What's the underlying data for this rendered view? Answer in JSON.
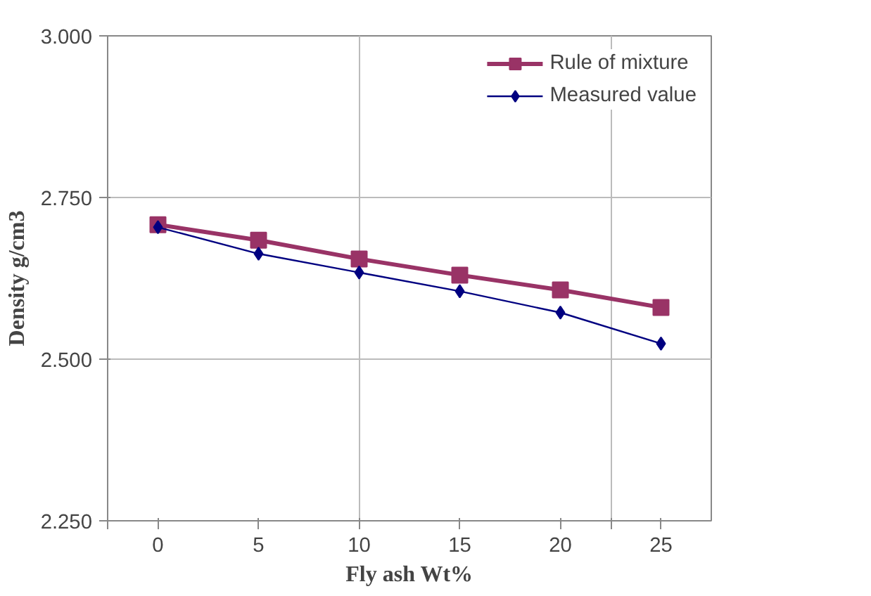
{
  "chart_data": {
    "type": "line",
    "xlabel": "Fly ash Wt%",
    "ylabel": "Density g/cm3",
    "x": [
      0,
      5,
      10,
      15,
      20,
      25
    ],
    "series": [
      {
        "name": "Rule of mixture",
        "color": "#993366",
        "values": [
          2.708,
          2.684,
          2.655,
          2.63,
          2.607,
          2.58
        ],
        "marker": "square"
      },
      {
        "name": "Measured value",
        "color": "#000080",
        "values": [
          2.704,
          2.663,
          2.634,
          2.605,
          2.572,
          2.524
        ],
        "marker": "diamond"
      }
    ],
    "xlim": [
      -2.5,
      27.5
    ],
    "xticks": [
      {
        "value": -2.5,
        "label": null
      },
      0,
      5,
      {
        "value": 10,
        "label": "10"
      },
      15,
      20,
      {
        "value": 22.5,
        "label": null
      },
      25
    ],
    "ylim": [
      2.25,
      3.0
    ],
    "yticks": [
      {
        "value": 2.25,
        "label": "2.250"
      },
      {
        "value": 2.5,
        "label": "2.500"
      },
      {
        "value": 2.75,
        "label": "2.750"
      },
      {
        "value": 3.0,
        "label": "3.000"
      }
    ],
    "grid": true,
    "legend": "top right"
  }
}
